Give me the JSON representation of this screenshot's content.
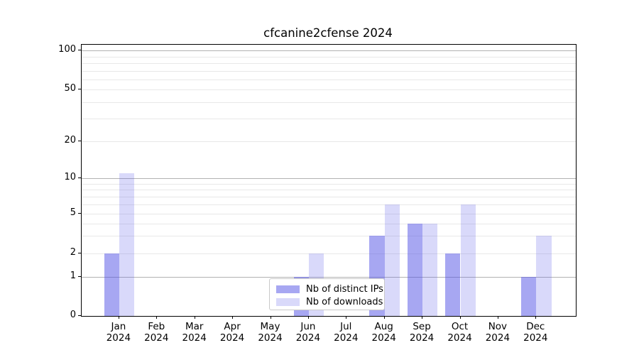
{
  "title": "cfcanine2cfense 2024",
  "colors": {
    "distinct_ips_bar": "rgba(80,80,230,0.50)",
    "downloads_bar": "rgba(80,80,230,0.22)",
    "grid_major": "#b2b2b2",
    "grid_minor": "#e8e8e8",
    "axis_spine": "#000000",
    "legend_border": "#c9c9c9"
  },
  "chart_data": {
    "type": "bar",
    "title": "cfcanine2cfense 2024",
    "categories": [
      "Jan",
      "Feb",
      "Mar",
      "Apr",
      "May",
      "Jun",
      "Jul",
      "Aug",
      "Sep",
      "Oct",
      "Nov",
      "Dec"
    ],
    "year_label": "2024",
    "series": [
      {
        "name": "Nb of distinct IPs",
        "color": "rgba(80,80,230,0.50)",
        "values": [
          2,
          0,
          0,
          0,
          0,
          1,
          0,
          3,
          4,
          2,
          0,
          1
        ]
      },
      {
        "name": "Nb of downloads",
        "color": "rgba(80,80,230,0.22)",
        "values": [
          11,
          0,
          0,
          0,
          0,
          2,
          0,
          6,
          4,
          6,
          0,
          3
        ]
      }
    ],
    "y_axis": {
      "scale": "quasi-log (0,1 linear then log-spaced labels)",
      "tick_values": [
        0,
        1,
        2,
        5,
        10,
        20,
        50,
        100
      ],
      "major_gridlines": [
        1,
        10,
        100
      ],
      "minor_gridlines": [
        2,
        3,
        4,
        5,
        6,
        7,
        8,
        9,
        20,
        30,
        40,
        50,
        60,
        70,
        80,
        90
      ],
      "ylim": [
        0,
        115
      ]
    },
    "xlabel": "",
    "ylabel": "",
    "grid": true,
    "legend_position": "lower center"
  }
}
